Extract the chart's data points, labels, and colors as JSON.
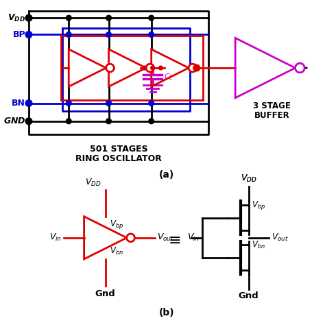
{
  "background_color": "#ffffff",
  "part_a_label": "(a)",
  "part_b_label": "(b)",
  "ring_osc_label_1": "501 STAGES",
  "ring_osc_label_2": "RING OSCILLATOR",
  "buffer_label_1": "3 STAGE",
  "buffer_label_2": "BUFFER",
  "colors": {
    "black": "#000000",
    "red": "#dd0000",
    "blue": "#0000cc",
    "magenta": "#cc00cc"
  },
  "figsize": [
    4.74,
    4.74
  ],
  "dpi": 100
}
